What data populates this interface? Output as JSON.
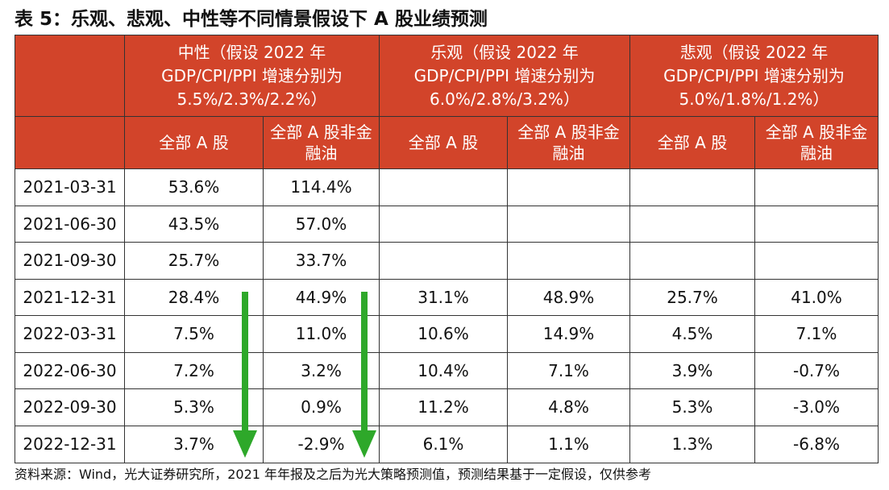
{
  "title": "表 5：乐观、悲观、中性等不同情景假设下 A 股业绩预测",
  "header": {
    "groups": [
      {
        "line1": "中性（假设 2022 年",
        "line2": "GDP/CPI/PPI 增速分别为",
        "line3": "5.5%/2.3%/2.2%）"
      },
      {
        "line1": "乐观（假设 2022 年",
        "line2": "GDP/CPI/PPI 增速分别为",
        "line3": "6.0%/2.8%/3.2%）"
      },
      {
        "line1": "悲观（假设 2022 年",
        "line2": "GDP/CPI/PPI 增速分别为",
        "line3": "5.0%/1.8%/1.2%）"
      }
    ],
    "sub": {
      "all_a": "全部 A 股",
      "ex_fin_l1": "全部 A 股非金",
      "ex_fin_l2": "融油"
    }
  },
  "rows": [
    {
      "date": "2021-03-31",
      "vals": [
        "53.6%",
        "114.4%",
        "",
        "",
        "",
        ""
      ]
    },
    {
      "date": "2021-06-30",
      "vals": [
        "43.5%",
        "57.0%",
        "",
        "",
        "",
        ""
      ]
    },
    {
      "date": "2021-09-30",
      "vals": [
        "25.7%",
        "33.7%",
        "",
        "",
        "",
        ""
      ]
    },
    {
      "date": "2021-12-31",
      "vals": [
        "28.4%",
        "44.9%",
        "31.1%",
        "48.9%",
        "25.7%",
        "41.0%"
      ]
    },
    {
      "date": "2022-03-31",
      "vals": [
        "7.5%",
        "11.0%",
        "10.6%",
        "14.9%",
        "4.5%",
        "7.1%"
      ]
    },
    {
      "date": "2022-06-30",
      "vals": [
        "7.2%",
        "3.2%",
        "10.4%",
        "7.1%",
        "3.9%",
        "-0.7%"
      ]
    },
    {
      "date": "2022-09-30",
      "vals": [
        "5.3%",
        "0.9%",
        "11.2%",
        "4.8%",
        "5.3%",
        "-3.0%"
      ]
    },
    {
      "date": "2022-12-31",
      "vals": [
        "3.7%",
        "-2.9%",
        "6.1%",
        "1.1%",
        "1.3%",
        "-6.8%"
      ]
    }
  ],
  "note": "资料来源：Wind，光大证券研究所，2021 年年报及之后为光大策略预测值，预测结果基于一定假设，仅供参考",
  "colors": {
    "header_bg": "#d2442a",
    "arrow": "#2ea82a"
  }
}
